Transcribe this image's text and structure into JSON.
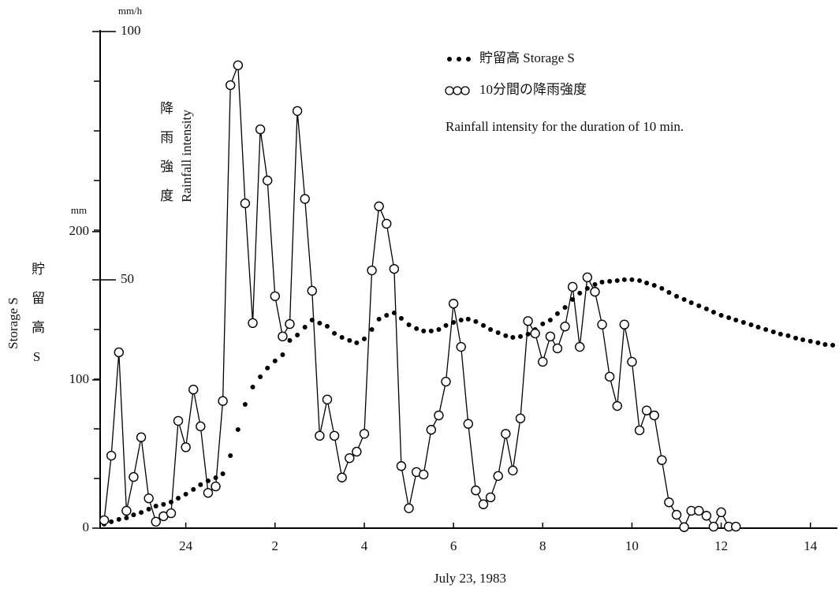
{
  "chart_data": {
    "type": "line",
    "xlabel": "July 23, 1983",
    "ylabel": "Rainfall intensity",
    "ylabel_ja": "降雨強度",
    "y_unit": "mm/h",
    "y2label": "Storage S",
    "y2label_ja": "貯留高S",
    "y2_unit": "mm",
    "annotation": "Rainfall intensity for the duration of 10 min.",
    "legend": "upper right",
    "xlim": [
      22.08,
      38.57
    ],
    "xticks": [
      24,
      {
        "value": 26,
        "label": "2"
      },
      {
        "value": 28,
        "label": "4"
      },
      {
        "value": 30,
        "label": "6"
      },
      {
        "value": 32,
        "label": "8"
      },
      {
        "value": 34,
        "label": "10"
      },
      {
        "value": 36,
        "label": "12"
      },
      {
        "value": 38,
        "label": "14"
      }
    ],
    "ylim": [
      0,
      100
    ],
    "yticks": [
      50,
      100
    ],
    "yminorticks": [
      10,
      20,
      30,
      40,
      60,
      70,
      80,
      90
    ],
    "y2lim": [
      0,
      335
    ],
    "y2ticks": [
      0,
      100,
      200
    ],
    "series": [
      {
        "name": "貯留高 Storage S",
        "color": "#000000",
        "marker": "dot",
        "axis": "y2",
        "x": [
          22.17,
          22.33,
          22.5,
          22.67,
          22.83,
          23,
          23.17,
          23.33,
          23.5,
          23.67,
          23.83,
          24,
          24.17,
          24.33,
          24.5,
          24.67,
          24.83,
          25,
          25.17,
          25.33,
          25.5,
          25.67,
          25.83,
          26,
          26.17,
          26.33,
          26.5,
          26.67,
          26.83,
          27,
          27.17,
          27.33,
          27.5,
          27.67,
          27.83,
          28,
          28.17,
          28.33,
          28.5,
          28.67,
          28.83,
          29,
          29.17,
          29.33,
          29.5,
          29.67,
          29.83,
          30,
          30.17,
          30.33,
          30.5,
          30.67,
          30.83,
          31,
          31.17,
          31.33,
          31.5,
          31.67,
          31.83,
          32,
          32.17,
          32.33,
          32.5,
          32.67,
          32.83,
          33,
          33.17,
          33.33,
          33.5,
          33.67,
          33.83,
          34,
          34.17,
          34.33,
          34.5,
          34.67,
          34.83,
          35,
          35.17,
          35.33,
          35.5,
          35.67,
          35.83,
          36,
          36.17,
          36.33,
          36.5,
          36.67,
          36.83,
          37,
          37.17,
          37.33,
          37.5,
          37.67,
          37.83,
          38,
          38.17,
          38.33,
          38.5
        ],
        "values": [
          2.7,
          4.3,
          5.9,
          6.9,
          9.0,
          10.6,
          12.8,
          14.9,
          16.0,
          17.6,
          20.2,
          22.9,
          26.1,
          29.3,
          31.9,
          34.0,
          36.7,
          48.9,
          66.5,
          83.5,
          95.2,
          102.1,
          108.0,
          112.8,
          117.0,
          126.6,
          130.3,
          135.6,
          140.4,
          138.3,
          136.2,
          131.4,
          128.7,
          126.6,
          125.0,
          127.7,
          134.0,
          141.0,
          143.6,
          145.2,
          141.5,
          137.2,
          134.6,
          133.0,
          133.0,
          134.0,
          136.7,
          138.8,
          140.4,
          141.0,
          139.4,
          136.7,
          134.0,
          131.9,
          129.8,
          128.7,
          129.3,
          130.9,
          134.0,
          137.8,
          140.4,
          144.7,
          148.9,
          154.3,
          158.5,
          161.7,
          164.4,
          166.0,
          166.5,
          167.0,
          167.6,
          167.6,
          167.0,
          165.4,
          163.8,
          161.7,
          159.0,
          156.4,
          154.3,
          152.1,
          150.0,
          147.9,
          145.7,
          143.6,
          142.0,
          140.4,
          138.8,
          137.2,
          135.6,
          134.0,
          132.4,
          130.9,
          129.8,
          128.2,
          127.1,
          126.1,
          125.0,
          123.9,
          123.4
        ]
      },
      {
        "name": "10分間の降雨強度",
        "color": "#000000",
        "marker": "circle",
        "x": [
          22.17,
          22.33,
          22.5,
          22.67,
          22.83,
          23,
          23.17,
          23.33,
          23.5,
          23.67,
          23.83,
          24,
          24.17,
          24.33,
          24.5,
          24.67,
          24.83,
          25,
          25.17,
          25.33,
          25.5,
          25.67,
          25.83,
          26,
          26.17,
          26.33,
          26.5,
          26.67,
          26.83,
          27,
          27.17,
          27.33,
          27.5,
          27.67,
          27.83,
          28,
          28.17,
          28.33,
          28.5,
          28.67,
          28.83,
          29,
          29.17,
          29.33,
          29.5,
          29.67,
          29.83,
          30,
          30.17,
          30.33,
          30.5,
          30.67,
          30.83,
          31,
          31.17,
          31.33,
          31.5,
          31.67,
          31.83,
          32,
          32.17,
          32.33,
          32.5,
          32.67,
          32.83,
          33,
          33.17,
          33.33,
          33.5,
          33.67,
          33.83,
          34,
          34.17,
          34.33,
          34.5,
          34.67,
          34.83,
          35,
          35.17,
          35.33,
          35.5,
          35.67,
          35.83,
          36,
          36.17,
          36.33
        ],
        "values": [
          1.6,
          14.6,
          35.4,
          3.5,
          10.3,
          18.3,
          6.0,
          1.3,
          2.4,
          3.0,
          21.6,
          16.3,
          27.9,
          20.5,
          7.1,
          8.4,
          25.6,
          89.2,
          93.2,
          65.4,
          41.3,
          80.3,
          70.0,
          46.7,
          38.6,
          41.1,
          84.0,
          66.3,
          47.8,
          18.6,
          25.9,
          18.6,
          10.2,
          14.1,
          15.4,
          19.0,
          51.9,
          64.8,
          61.3,
          52.2,
          12.5,
          4.0,
          11.3,
          10.8,
          19.8,
          22.7,
          29.5,
          45.2,
          36.5,
          21.0,
          7.6,
          4.8,
          6.2,
          10.5,
          19.0,
          11.6,
          22.1,
          41.7,
          39.2,
          33.5,
          38.6,
          36.2,
          40.6,
          48.6,
          36.5,
          50.5,
          47.6,
          41.0,
          30.5,
          24.6,
          41.0,
          33.5,
          19.7,
          23.7,
          22.7,
          13.7,
          5.2,
          2.7,
          0.2,
          3.5,
          3.5,
          2.5,
          0.3,
          3.2,
          0.3,
          0.3
        ]
      }
    ]
  }
}
